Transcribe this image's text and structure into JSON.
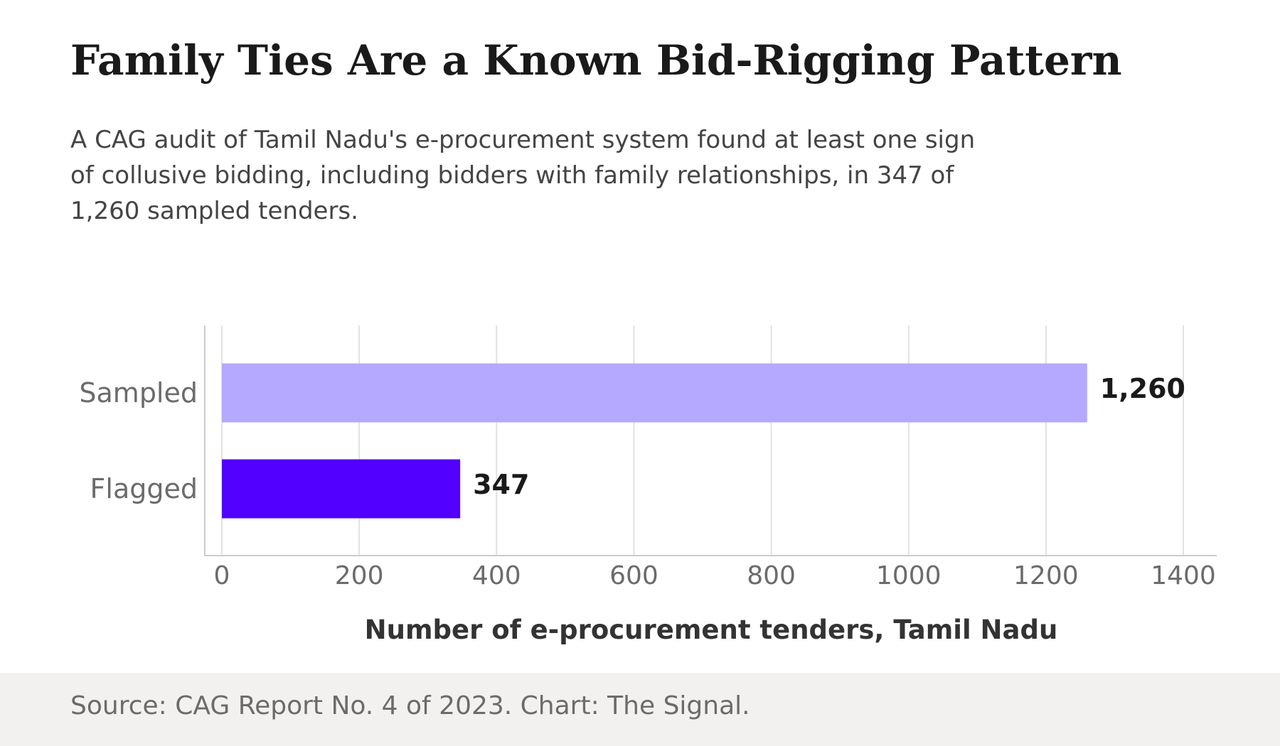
{
  "title": "Family Ties Are a Known Bid-Rigging Pattern",
  "subtitle": "A CAG audit of Tamil Nadu's e-procurement system found at least one sign of collusive bidding, including bidders with family relationships, in 347 of 1,260 sampled tenders.",
  "source": "Source: CAG Report No. 4 of 2023. Chart: The Signal.",
  "colors": {
    "sampled": "#b5a8ff",
    "flagged": "#5200ff",
    "grid": "#e2e2e2",
    "axis": "#cccccc",
    "tick_text": "#6b6b6b",
    "label_text": "#1a1a1a",
    "xlabel_text": "#333333",
    "footer_bg": "#f2f1f0"
  },
  "chart_data": {
    "type": "bar",
    "orientation": "horizontal",
    "categories": [
      "Sampled",
      "Flagged"
    ],
    "values": [
      1260,
      347
    ],
    "value_labels": [
      "1,260",
      "347"
    ],
    "xlabel": "Number of e-procurement tenders, Tamil Nadu",
    "ylabel": "",
    "xlim": [
      0,
      1450
    ],
    "xticks": [
      0,
      200,
      400,
      600,
      800,
      1000,
      1200,
      1400
    ],
    "grid": true
  }
}
